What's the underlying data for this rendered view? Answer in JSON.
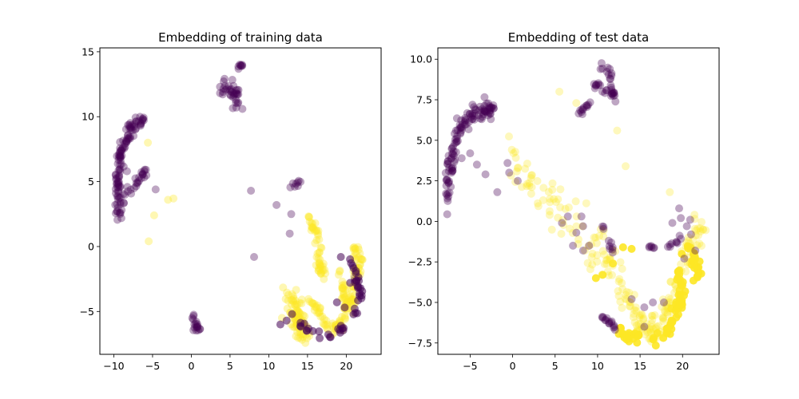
{
  "colors": {
    "class_a": "#440154",
    "class_b": "#fde725",
    "axis": "#000000"
  },
  "chart_data": [
    {
      "type": "scatter",
      "title": "Embedding of training data",
      "xlabel": "",
      "ylabel": "",
      "xlim": [
        -11.8,
        24.5
      ],
      "ylim": [
        -8.3,
        15.3
      ],
      "xticks": [
        -10,
        -5,
        0,
        5,
        10,
        15,
        20
      ],
      "yticks": [
        -5,
        0,
        5,
        10,
        15
      ],
      "xtick_labels": [
        "−10",
        "−5",
        "0",
        "5",
        "10",
        "15",
        "20"
      ],
      "ytick_labels": [
        "−5",
        "0",
        "5",
        "10",
        "15"
      ],
      "grid": false,
      "legend": "none",
      "series": [
        {
          "color_key": "class_a",
          "clusters": [
            {
              "path": [
                [
                  -9.6,
                  2.3
                ],
                [
                  -9.5,
                  4.5
                ],
                [
                  -9.3,
                  6.5
                ],
                [
                  -8.5,
                  8.2
                ],
                [
                  -7.5,
                  9.3
                ],
                [
                  -6.6,
                  9.8
                ],
                [
                  -6.0,
                  9.6
                ]
              ],
              "spread": 0.45,
              "count": 110
            },
            {
              "path": [
                [
                  -9.2,
                  2.5
                ],
                [
                  -8.8,
                  4.0
                ],
                [
                  -7.5,
                  4.6
                ],
                [
                  -6.5,
                  5.3
                ],
                [
                  -5.8,
                  5.7
                ]
              ],
              "spread": 0.35,
              "count": 30
            },
            {
              "path": [
                [
                  4.0,
                  12.4
                ],
                [
                  5.0,
                  12.0
                ],
                [
                  6.0,
                  11.8
                ],
                [
                  5.5,
                  11.0
                ]
              ],
              "spread": 0.4,
              "count": 35
            },
            {
              "path": [
                [
                  6.2,
                  13.7
                ],
                [
                  6.6,
                  14.0
                ]
              ],
              "spread": 0.15,
              "count": 8
            },
            {
              "path": [
                [
                  0.2,
                  -6.3
                ],
                [
                  1.0,
                  -6.4
                ],
                [
                  0.3,
                  -5.3
                ]
              ],
              "spread": 0.2,
              "count": 18
            },
            {
              "path": [
                [
                  12.6,
                  4.6
                ],
                [
                  13.6,
                  4.7
                ],
                [
                  14.0,
                  5.1
                ]
              ],
              "spread": 0.2,
              "count": 8
            },
            {
              "path": [
                [
                  21.0,
                  -2.7
                ],
                [
                  21.4,
                  -2.2
                ]
              ],
              "spread": 0.15,
              "count": 4
            }
          ],
          "points": [
            [
              -4.6,
              4.4
            ],
            [
              7.7,
              4.3
            ],
            [
              8.1,
              -0.8
            ],
            [
              11.0,
              3.2
            ],
            [
              12.9,
              2.5
            ],
            [
              12.7,
              1.0
            ],
            [
              -8.3,
              5.8
            ],
            [
              5.8,
              10.7
            ],
            [
              6.6,
              10.6
            ]
          ]
        },
        {
          "color_key": "class_b",
          "clusters": [
            {
              "path": [
                [
                  12.5,
                  -3.5
                ],
                [
                  13.5,
                  -4.5
                ],
                [
                  14.0,
                  -5.8
                ],
                [
                  14.5,
                  -6.8
                ],
                [
                  13.5,
                  -5.0
                ]
              ],
              "spread": 0.65,
              "count": 90
            },
            {
              "path": [
                [
                  15.0,
                  2.3
                ],
                [
                  15.8,
                  1.5
                ],
                [
                  16.5,
                  0.5
                ],
                [
                  16.5,
                  -1.0
                ],
                [
                  17.0,
                  -2.5
                ],
                [
                  16.2,
                  -1.5
                ]
              ],
              "spread": 0.35,
              "count": 50
            },
            {
              "path": [
                [
                  15.5,
                  -4.3
                ],
                [
                  16.5,
                  -5.0
                ],
                [
                  17.5,
                  -6.0
                ],
                [
                  18.5,
                  -6.3
                ],
                [
                  19.8,
                  -5.5
                ],
                [
                  20.7,
                  -4.0
                ],
                [
                  21.3,
                  -2.5
                ],
                [
                  21.6,
                  -1.0
                ],
                [
                  21.0,
                  0.0
                ]
              ],
              "spread": 0.4,
              "count": 120
            },
            {
              "path": [
                [
                  19.0,
                  -1.5
                ],
                [
                  19.5,
                  -3.0
                ],
                [
                  20.0,
                  -4.5
                ]
              ],
              "spread": 0.35,
              "count": 25
            }
          ],
          "points": [
            [
              -5.5,
              0.4
            ],
            [
              -4.8,
              2.4
            ],
            [
              -3.0,
              3.6
            ],
            [
              -2.3,
              3.7
            ],
            [
              -5.6,
              8.0
            ],
            [
              11.7,
              -5.5
            ]
          ]
        },
        {
          "color_key": "class_a",
          "alpha": 0.55,
          "clusters": [
            {
              "path": [
                [
                  20.5,
                  -1.0
                ],
                [
                  21.5,
                  -2.5
                ],
                [
                  21.8,
                  -4.0
                ],
                [
                  21.0,
                  -5.3
                ]
              ],
              "spread": 0.4,
              "count": 25
            },
            {
              "path": [
                [
                  14.0,
                  -6.0
                ],
                [
                  16.0,
                  -6.5
                ],
                [
                  18.5,
                  -6.7
                ],
                [
                  19.8,
                  -6.3
                ]
              ],
              "spread": 0.3,
              "count": 20
            }
          ],
          "points": [
            [
              11.5,
              -6.0
            ],
            [
              12.3,
              -5.7
            ],
            [
              13.0,
              -5.2
            ],
            [
              19.3,
              -0.8
            ],
            [
              19.8,
              -4.7
            ],
            [
              18.8,
              -4.3
            ],
            [
              20.5,
              -2.8
            ]
          ]
        }
      ]
    },
    {
      "type": "scatter",
      "title": "Embedding of test data",
      "xlabel": "",
      "ylabel": "",
      "xlim": [
        -8.8,
        24.3
      ],
      "ylim": [
        -8.2,
        10.7
      ],
      "xticks": [
        -5,
        0,
        5,
        10,
        15,
        20
      ],
      "yticks": [
        -7.5,
        -5.0,
        -2.5,
        0.0,
        2.5,
        5.0,
        7.5,
        10.0
      ],
      "xtick_labels": [
        "−5",
        "0",
        "5",
        "10",
        "15",
        "20"
      ],
      "ytick_labels": [
        "−7.5",
        "−5.0",
        "−2.5",
        "0.0",
        "2.5",
        "5.0",
        "7.5",
        "10.0"
      ],
      "grid": false,
      "legend": "none",
      "series": [
        {
          "color_key": "class_b",
          "alpha": 0.3,
          "clusters": [
            {
              "path": [
                [
                  -1.0,
                  4.2
                ],
                [
                  1.0,
                  2.8
                ],
                [
                  3.0,
                  1.8
                ],
                [
                  5.0,
                  0.8
                ],
                [
                  7.0,
                  0.2
                ],
                [
                  9.0,
                  -0.8
                ],
                [
                  11.0,
                  -2.5
                ],
                [
                  12.5,
                  -3.5
                ]
              ],
              "spread": 1.1,
              "count": 90
            },
            {
              "path": [
                [
                  13.0,
                  -4.0
                ],
                [
                  14.0,
                  -5.3
                ],
                [
                  15.0,
                  -6.5
                ],
                [
                  16.5,
                  -7.0
                ],
                [
                  17.5,
                  -6.0
                ],
                [
                  18.5,
                  -5.0
                ],
                [
                  19.5,
                  -4.0
                ],
                [
                  20.5,
                  -2.5
                ],
                [
                  21.5,
                  -1.0
                ],
                [
                  22.0,
                  0.0
                ]
              ],
              "spread": 0.75,
              "count": 130
            }
          ],
          "points": [
            [
              5.5,
              8.0
            ],
            [
              7.5,
              7.3
            ],
            [
              12.3,
              5.6
            ],
            [
              13.3,
              3.4
            ],
            [
              18.5,
              1.8
            ],
            [
              10.5,
              -3.3
            ],
            [
              11.2,
              -3.1
            ],
            [
              12.5,
              -4.6
            ],
            [
              8.5,
              -1.8
            ],
            [
              9.3,
              -2.2
            ]
          ]
        },
        {
          "color_key": "class_b",
          "alpha": 0.9,
          "clusters": [
            {
              "path": [
                [
                  19.5,
                  -3.0
                ],
                [
                  20.0,
                  -4.5
                ],
                [
                  19.0,
                  -6.0
                ],
                [
                  18.0,
                  -7.0
                ],
                [
                  16.5,
                  -7.2
                ]
              ],
              "spread": 0.35,
              "count": 50
            },
            {
              "path": [
                [
                  12.0,
                  -6.8
                ],
                [
                  13.5,
                  -7.2
                ],
                [
                  15.0,
                  -7.0
                ]
              ],
              "spread": 0.35,
              "count": 20
            },
            {
              "path": [
                [
                  20.5,
                  -1.5
                ],
                [
                  21.5,
                  -2.5
                ],
                [
                  21.8,
                  -3.8
                ]
              ],
              "spread": 0.4,
              "count": 25
            }
          ],
          "points": [
            [
              9.8,
              -3.5
            ],
            [
              10.6,
              -3.3
            ],
            [
              11.8,
              -2.6
            ],
            [
              13.0,
              -1.6
            ],
            [
              14.0,
              -1.7
            ]
          ]
        },
        {
          "color_key": "class_a",
          "clusters": [
            {
              "path": [
                [
                  -7.5,
                  1.2
                ],
                [
                  -7.5,
                  2.8
                ],
                [
                  -7.0,
                  4.5
                ],
                [
                  -6.0,
                  5.9
                ],
                [
                  -4.5,
                  6.7
                ],
                [
                  -3.0,
                  7.0
                ],
                [
                  -2.2,
                  6.8
                ]
              ],
              "spread": 0.4,
              "count": 120
            },
            {
              "path": [
                [
                  10.4,
                  9.8
                ],
                [
                  11.2,
                  9.5
                ],
                [
                  11.8,
                  8.5
                ],
                [
                  11.8,
                  7.6
                ]
              ],
              "spread": 0.3,
              "count": 25
            },
            {
              "path": [
                [
                  9.6,
                  8.5
                ],
                [
                  10.5,
                  8.0
                ],
                [
                  11.5,
                  7.9
                ]
              ],
              "spread": 0.2,
              "count": 12
            },
            {
              "path": [
                [
                  7.8,
                  6.6
                ],
                [
                  8.5,
                  7.1
                ],
                [
                  9.4,
                  7.2
                ]
              ],
              "spread": 0.2,
              "count": 12
            },
            {
              "path": [
                [
                  10.5,
                  -5.8
                ],
                [
                  11.5,
                  -6.2
                ],
                [
                  12.0,
                  -6.6
                ]
              ],
              "spread": 0.2,
              "count": 15
            },
            {
              "path": [
                [
                  10.5,
                  -0.2
                ],
                [
                  11.5,
                  -1.5
                ],
                [
                  12.0,
                  -2.0
                ]
              ],
              "spread": 0.2,
              "count": 10
            },
            {
              "path": [
                [
                  16.0,
                  -1.6
                ],
                [
                  17.5,
                  -1.6
                ],
                [
                  19.0,
                  -1.5
                ],
                [
                  20.0,
                  -1.0
                ]
              ],
              "spread": 0.15,
              "count": 15
            }
          ],
          "points": [
            [
              -6.8,
              3.8
            ],
            [
              -6.0,
              3.9
            ],
            [
              -5.0,
              4.2
            ],
            [
              -4.2,
              3.5
            ],
            [
              -3.2,
              2.9
            ],
            [
              -1.8,
              1.8
            ],
            [
              -0.6,
              3.6
            ],
            [
              -0.4,
              3.0
            ],
            [
              0.6,
              2.5
            ],
            [
              5.8,
              -0.1
            ],
            [
              6.5,
              0.3
            ],
            [
              7.5,
              -0.7
            ],
            [
              8.1,
              0.3
            ],
            [
              8.3,
              -0.3
            ],
            [
              7.1,
              -1.5
            ],
            [
              8.3,
              -1.8
            ],
            [
              9.0,
              -1.5
            ],
            [
              14.0,
              -4.8
            ],
            [
              15.5,
              -5.3
            ],
            [
              16.5,
              -5.0
            ],
            [
              15.5,
              -6.5
            ],
            [
              17.8,
              -5.0
            ],
            [
              18.8,
              -0.1
            ],
            [
              19.6,
              0.8
            ],
            [
              20.5,
              -0.3
            ],
            [
              21.0,
              -0.8
            ],
            [
              21.5,
              -1.8
            ],
            [
              20.2,
              -2.3
            ],
            [
              19.8,
              0.2
            ],
            [
              20.9,
              0.1
            ]
          ]
        }
      ]
    }
  ]
}
